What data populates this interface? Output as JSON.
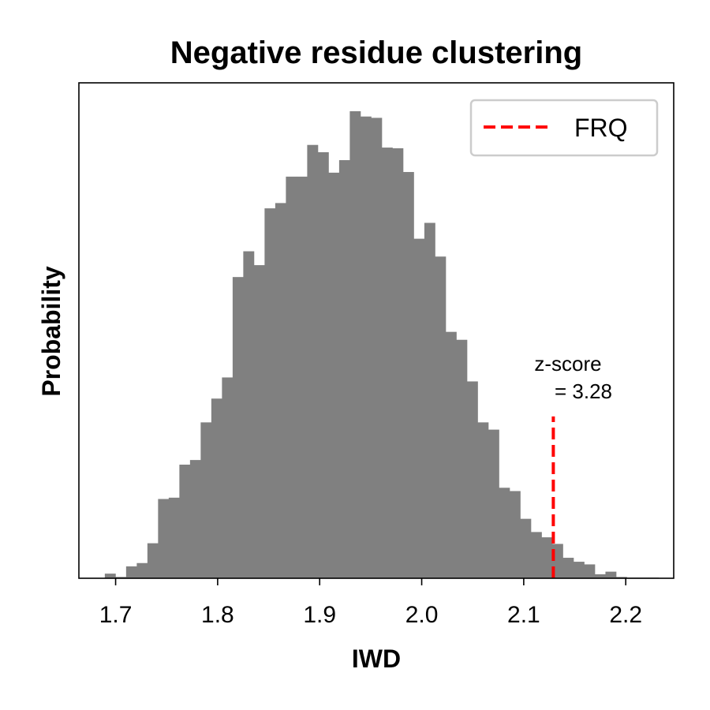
{
  "chart_data": {
    "type": "bar",
    "title": "Negative residue clustering",
    "xlabel": "IWD",
    "ylabel": "Probability",
    "xlim": [
      1.664,
      2.247
    ],
    "ylim": [
      0,
      7.5
    ],
    "xticks": [
      1.7,
      1.8,
      1.9,
      2.0,
      2.1,
      2.2
    ],
    "xtick_labels": [
      "1.7",
      "1.8",
      "1.9",
      "2.0",
      "2.1",
      "2.2"
    ],
    "yticks_visible": false,
    "grid": false,
    "bar_color": "#808080",
    "bins": {
      "start": 1.6894,
      "width": 0.01044,
      "values": [
        0.07,
        0.02,
        0.18,
        0.23,
        0.53,
        1.2,
        1.22,
        1.72,
        1.79,
        2.36,
        2.72,
        3.04,
        4.56,
        4.95,
        4.74,
        5.6,
        5.68,
        6.08,
        6.08,
        6.56,
        6.45,
        6.14,
        6.33,
        7.07,
        6.99,
        6.97,
        6.52,
        6.51,
        6.15,
        5.14,
        5.38,
        4.87,
        3.73,
        3.61,
        2.98,
        2.36,
        2.25,
        1.37,
        1.32,
        0.9,
        0.7,
        0.62,
        0.52,
        0.31,
        0.25,
        0.21,
        0.06,
        0.1,
        0.02,
        0.01,
        0.01,
        0.01,
        0.005
      ]
    },
    "reference_line": {
      "name": "FRQ",
      "x": 2.129,
      "ymax": 2.45,
      "color": "#ff0000",
      "style": "dashed"
    },
    "annotation": {
      "line1": "z-score",
      "line2": "= 3.28"
    },
    "legend": {
      "position": "top-right",
      "entries": [
        "FRQ"
      ]
    }
  }
}
